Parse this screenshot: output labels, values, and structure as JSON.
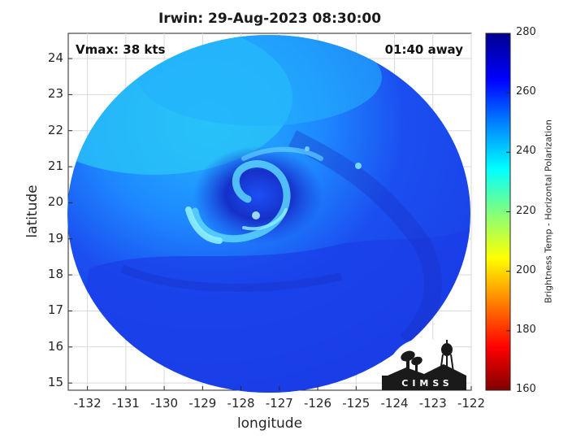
{
  "title": "Irwin: 29-Aug-2023 08:30:00",
  "annotations": {
    "vmax": "Vmax: 38 kts",
    "time_away": "01:40 away"
  },
  "axes": {
    "xlabel": "longitude",
    "ylabel": "latitude",
    "xlim": [
      -132.5,
      -122
    ],
    "ylim": [
      14.8,
      24.7
    ],
    "xticks": [
      -132,
      -131,
      -130,
      -129,
      -128,
      -127,
      -126,
      -125,
      -124,
      -123,
      -122
    ],
    "yticks": [
      15,
      16,
      17,
      18,
      19,
      20,
      21,
      22,
      23,
      24
    ],
    "grid": true
  },
  "colorbar": {
    "label": "Brightness Temp - Horizontal Polarization",
    "range": [
      160,
      280
    ],
    "ticks": [
      280,
      260,
      240,
      220,
      200,
      180,
      160
    ],
    "colormap": "jet",
    "colors": [
      "#800000",
      "#ff0000",
      "#ff8000",
      "#ffff00",
      "#80ff80",
      "#00ffff",
      "#0080ff",
      "#0000ff",
      "#00008f"
    ]
  },
  "image": {
    "description_type": "microwave brightness temperature swath",
    "center_lon": -127.2,
    "center_lat": 19.8,
    "min_temp_region": 250,
    "max_temp_region": 275
  },
  "logo": {
    "text": "CIMSS",
    "icon": "cimss-logo-icon"
  },
  "chart_data": {
    "type": "heatmap",
    "title": "Irwin: 29-Aug-2023 08:30:00",
    "xlabel": "longitude",
    "ylabel": "latitude",
    "xlim": [
      -132.5,
      -122
    ],
    "ylim": [
      14.8,
      24.7
    ],
    "color_range": [
      160,
      280
    ],
    "colorbar_label": "Brightness Temp - Horizontal Polarization",
    "storm_center": {
      "lon": -127.2,
      "lat": 19.8
    }
  }
}
